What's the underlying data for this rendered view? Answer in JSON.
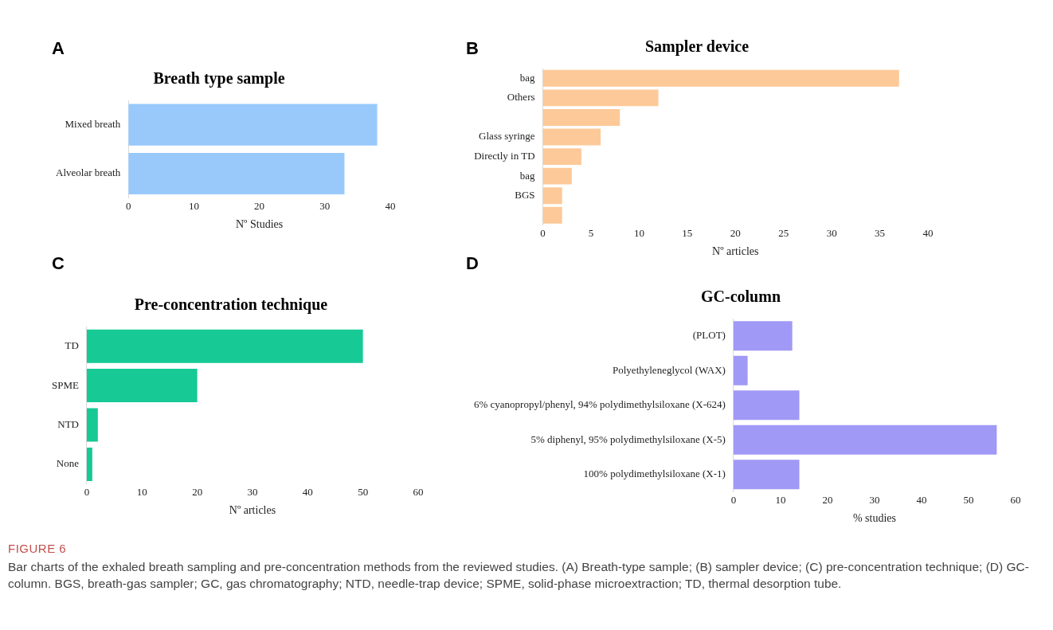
{
  "chart_data": [
    {
      "type": "bar",
      "orientation": "horizontal",
      "title": "Breath type sample",
      "xlabel": "Nº Studies",
      "categories": [
        "Mixed breath",
        "Alveolar breath"
      ],
      "values": [
        38,
        33
      ],
      "color": "#99c9fb",
      "xlim": [
        0,
        40
      ],
      "xticks": [
        0,
        10,
        20,
        30,
        40
      ],
      "grid": false,
      "annotations": [
        "A"
      ]
    },
    {
      "type": "bar",
      "orientation": "horizontal",
      "title": "Sampler device",
      "xlabel": "Nº articles",
      "categories": [
        "bag",
        "Others",
        null,
        "Glass syringe",
        "Directly in TD",
        "bag",
        "BGS",
        null
      ],
      "values": [
        37,
        12,
        8,
        6,
        4,
        3,
        2,
        2
      ],
      "color": "#fdc998",
      "xlim": [
        0,
        40
      ],
      "xticks": [
        0,
        5,
        10,
        15,
        20,
        25,
        30,
        35,
        40
      ],
      "grid": false,
      "annotations": [
        "B"
      ]
    },
    {
      "type": "bar",
      "orientation": "horizontal",
      "title": "Pre-concentration technique",
      "xlabel": "Nº articles",
      "categories": [
        "TD",
        "SPME",
        "NTD",
        "None"
      ],
      "values": [
        50,
        20,
        2,
        1
      ],
      "color": "#16c995",
      "xlim": [
        0,
        60
      ],
      "xticks": [
        0,
        10,
        20,
        30,
        40,
        50,
        60
      ],
      "grid": false,
      "annotations": [
        "C"
      ]
    },
    {
      "type": "bar",
      "orientation": "horizontal",
      "title": "GC-column",
      "xlabel": "% studies",
      "categories": [
        "(PLOT)",
        "Polyethyleneglycol (WAX)",
        "6% cyanopropyl/phenyl, 94% polydimethylsiloxane (X-624)",
        "5% diphenyl, 95% polydimethylsiloxane (X-5)",
        "100% polydimethylsiloxane (X-1)"
      ],
      "values": [
        12.5,
        3,
        14,
        56,
        14
      ],
      "color": "#a099f5",
      "xlim": [
        0,
        60
      ],
      "xticks": [
        0,
        10,
        20,
        30,
        40,
        50,
        60
      ],
      "grid": false,
      "annotations": [
        "D"
      ]
    },
    {
      "type": "other",
      "annotations": [
        "FIGURE 6",
        "Bar charts of the exhaled breath sampling and pre-concentration methods from the reviewed studies. (A) Breath-type sample; (B) sampler device; (C) pre-concentration technique; (D) GC-column. BGS, breath-gas sampler; GC, gas chromatography; NTD, needle-trap device; SPME, solid-phase microextraction; TD, thermal desorption tube."
      ]
    }
  ]
}
